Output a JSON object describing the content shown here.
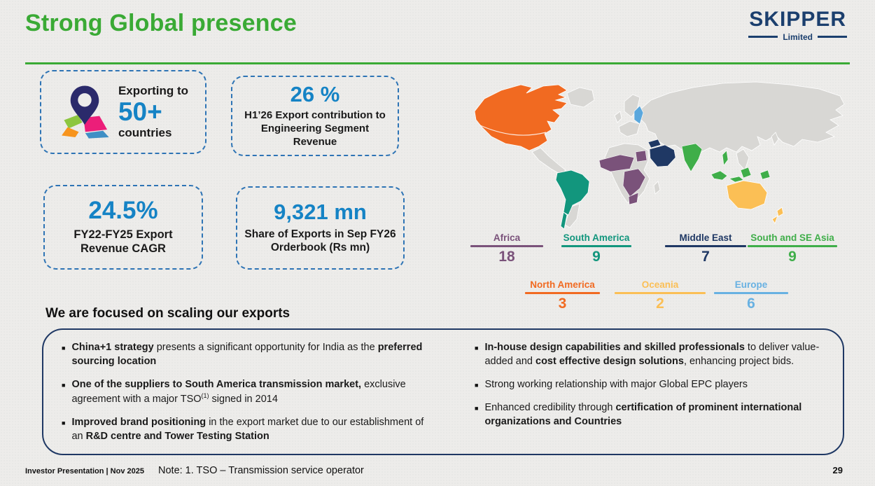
{
  "slide": {
    "title": "Strong Global presence",
    "heading_color": "#3aaa35"
  },
  "logo": {
    "name": "SKIPPER",
    "subtitle": "Limited",
    "color": "#1b3f6e"
  },
  "stats": [
    {
      "prefix": "Exporting to",
      "value": "50+",
      "suffix": "countries",
      "icon": "location-pin-map-icon"
    },
    {
      "value": "26 %",
      "label": "H1’26 Export contribution to Engineering Segment Revenue"
    },
    {
      "value": "24.5%",
      "label": "FY22-FY25 Export Revenue CAGR"
    },
    {
      "value": "9,321 mn",
      "label": "Share of Exports in Sep FY26 Orderbook (Rs mn)"
    }
  ],
  "stat_value_color": "#1583c5",
  "map": {
    "regions": [
      {
        "name": "Africa",
        "count": "18",
        "color": "#7a527a"
      },
      {
        "name": "South America",
        "count": "9",
        "color": "#12967d"
      },
      {
        "name": "Middle East",
        "count": "7",
        "color": "#1f3864"
      },
      {
        "name": "South and SE Asia",
        "count": "9",
        "color": "#3fae49"
      },
      {
        "name": "North America",
        "count": "3",
        "color": "#f16a21"
      },
      {
        "name": "Oceania",
        "count": "2",
        "color": "#fbbf55"
      },
      {
        "name": "Europe",
        "count": "6",
        "color": "#68b1e2"
      }
    ]
  },
  "focus": {
    "heading": "We are focused on scaling our exports",
    "left": [
      {
        "segments": [
          {
            "t": "China+1 strategy ",
            "b": true
          },
          {
            "t": "presents a significant opportunity for India as the "
          },
          {
            "t": "preferred sourcing location",
            "b": true
          }
        ]
      },
      {
        "segments": [
          {
            "t": "One of the suppliers to South America transmission market,",
            "b": true
          },
          {
            "t": " exclusive agreement with a major TSO"
          },
          {
            "t": "(1)",
            "sup": true
          },
          {
            "t": " signed in 2014"
          }
        ]
      },
      {
        "segments": [
          {
            "t": "Improved brand positioning",
            "b": true
          },
          {
            "t": " in the export market due to our establishment of an "
          },
          {
            "t": "R&D centre and Tower Testing Station",
            "b": true
          }
        ]
      }
    ],
    "right": [
      {
        "segments": [
          {
            "t": "In-house design capabilities and skilled professionals",
            "b": true
          },
          {
            "t": " to deliver value-added and "
          },
          {
            "t": "cost effective design solutions",
            "b": true
          },
          {
            "t": ", enhancing project bids."
          }
        ]
      },
      {
        "segments": [
          {
            "t": "Strong working relationship with major Global EPC players"
          }
        ]
      },
      {
        "segments": [
          {
            "t": "Enhanced credibility through "
          },
          {
            "t": "certification of prominent international organizations and Countries",
            "b": true
          }
        ]
      }
    ]
  },
  "footer": {
    "left": "Investor Presentation | Nov 2025",
    "note": "Note: 1. TSO – Transmission service operator",
    "page": "29"
  }
}
